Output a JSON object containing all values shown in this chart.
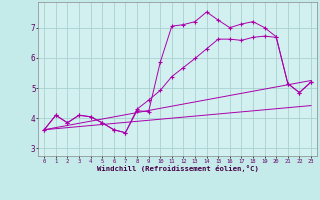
{
  "xlabel": "Windchill (Refroidissement éolien,°C)",
  "background_color": "#c5eaea",
  "plot_bg_color": "#d2f0f0",
  "grid_color": "#aad0d0",
  "line_color": "#aa00aa",
  "xlim": [
    -0.5,
    23.5
  ],
  "ylim": [
    2.75,
    7.85
  ],
  "yticks": [
    3,
    4,
    5,
    6,
    7
  ],
  "xticks": [
    0,
    1,
    2,
    3,
    4,
    5,
    6,
    7,
    8,
    9,
    10,
    11,
    12,
    13,
    14,
    15,
    16,
    17,
    18,
    19,
    20,
    21,
    22,
    23
  ],
  "line1_x": [
    0,
    1,
    2,
    3,
    4,
    5,
    6,
    7,
    8,
    9,
    10,
    11,
    12,
    13,
    14,
    15,
    16,
    17,
    18,
    19,
    20,
    21,
    22,
    23
  ],
  "line1_y": [
    3.62,
    4.1,
    3.85,
    4.1,
    4.05,
    3.85,
    3.62,
    3.52,
    4.25,
    4.22,
    5.85,
    7.05,
    7.1,
    7.2,
    7.52,
    7.25,
    7.0,
    7.12,
    7.2,
    7.0,
    6.7,
    5.15,
    4.85,
    5.2
  ],
  "line2_x": [
    0,
    1,
    2,
    3,
    4,
    5,
    6,
    7,
    8,
    9,
    10,
    11,
    12,
    13,
    14,
    15,
    16,
    17,
    18,
    19,
    20,
    21,
    22,
    23
  ],
  "line2_y": [
    3.62,
    4.1,
    3.85,
    4.1,
    4.05,
    3.85,
    3.62,
    3.52,
    4.3,
    4.6,
    4.92,
    5.38,
    5.68,
    5.98,
    6.3,
    6.62,
    6.62,
    6.58,
    6.68,
    6.72,
    6.68,
    5.15,
    4.85,
    5.2
  ],
  "line3_x": [
    0,
    23
  ],
  "line3_y": [
    3.62,
    5.25
  ],
  "line4_x": [
    0,
    23
  ],
  "line4_y": [
    3.62,
    4.42
  ]
}
